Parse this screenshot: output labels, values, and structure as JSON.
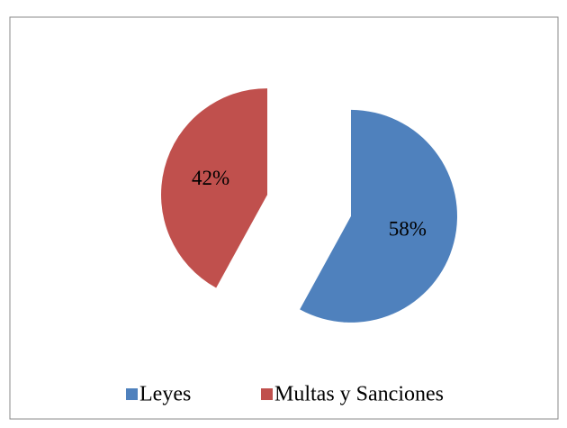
{
  "chart_data": {
    "type": "pie",
    "categories": [
      "Leyes",
      "Multas y Sanciones"
    ],
    "values": [
      58,
      42
    ],
    "value_labels": [
      "58%",
      "42%"
    ],
    "colors": [
      "#4f81bd",
      "#c0504d"
    ],
    "exploded": true,
    "legend": "bottom"
  }
}
